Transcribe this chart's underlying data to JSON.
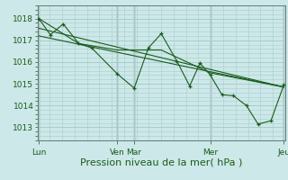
{
  "bg_color": "#cce8e8",
  "grid_color": "#aacccc",
  "line_color": "#1a5c1a",
  "xlabel": "Pression niveau de la mer( hPa )",
  "xlabel_fontsize": 8,
  "yticks": [
    1013,
    1014,
    1015,
    1016,
    1017,
    1018
  ],
  "ylim": [
    1012.4,
    1018.6
  ],
  "xlim": [
    0,
    9.6
  ],
  "xtick_labels": [
    "Lun",
    "Ven",
    "Mar",
    "Mer",
    "Jeu"
  ],
  "xtick_positions": [
    0.05,
    3.1,
    3.75,
    6.7,
    9.55
  ],
  "vlines": [
    0.05,
    3.1,
    3.75,
    6.7,
    9.55
  ],
  "series1": {
    "x": [
      0.05,
      0.5,
      1.0,
      1.6,
      2.1,
      3.1,
      3.75,
      4.3,
      4.8,
      5.4,
      5.9,
      6.3,
      6.7,
      7.15,
      7.6,
      8.1,
      8.55,
      9.05,
      9.55
    ],
    "y": [
      1018.0,
      1017.25,
      1017.75,
      1016.85,
      1016.65,
      1015.45,
      1014.8,
      1016.65,
      1017.3,
      1016.05,
      1014.9,
      1015.95,
      1015.4,
      1014.5,
      1014.45,
      1014.0,
      1013.15,
      1013.3,
      1014.95
    ]
  },
  "series2": {
    "x": [
      0.05,
      1.6,
      3.1,
      4.8,
      6.7,
      9.55
    ],
    "y": [
      1018.0,
      1016.85,
      1016.55,
      1016.55,
      1015.5,
      1014.85
    ]
  },
  "series3": {
    "x": [
      0.05,
      9.55
    ],
    "y": [
      1017.55,
      1014.85
    ]
  },
  "series4": {
    "x": [
      0.05,
      9.55
    ],
    "y": [
      1017.2,
      1014.85
    ]
  }
}
